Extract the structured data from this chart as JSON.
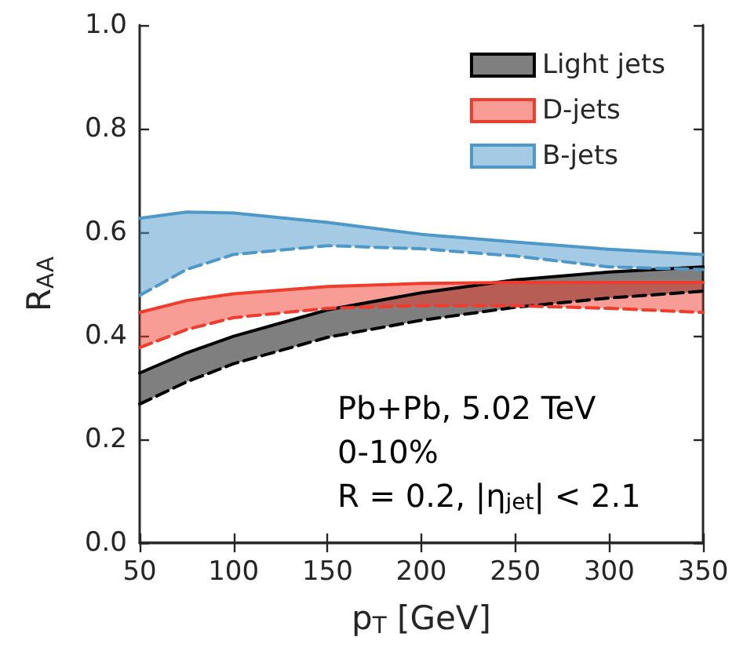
{
  "chart_data": {
    "type": "line",
    "xlabel": "p$_{T}$ [GeV]",
    "ylabel": "R$_{AA}$",
    "x": [
      50,
      75,
      100,
      150,
      200,
      250,
      300,
      350
    ],
    "series": [
      {
        "name": "Light jets",
        "color": "#000000",
        "values": [
          0.328,
          0.367,
          0.399,
          0.45,
          0.483,
          0.508,
          0.523,
          0.533
        ],
        "lower": [
          0.268,
          0.311,
          0.346,
          0.397,
          0.43,
          0.455,
          0.473,
          0.486
        ],
        "upper": [
          0.328,
          0.367,
          0.399,
          0.45,
          0.483,
          0.508,
          0.523,
          0.533
        ]
      },
      {
        "name": "D-jets",
        "color": "#f03c2c",
        "values": [
          0.445,
          0.468,
          0.481,
          0.495,
          0.501,
          0.503,
          0.503,
          0.503
        ],
        "lower": [
          0.377,
          0.412,
          0.435,
          0.453,
          0.458,
          0.458,
          0.453,
          0.445
        ],
        "upper": [
          0.445,
          0.468,
          0.481,
          0.495,
          0.501,
          0.503,
          0.503,
          0.503
        ]
      },
      {
        "name": "B-jets",
        "color": "#4c98c9",
        "values": [
          0.627,
          0.639,
          0.637,
          0.619,
          0.596,
          0.581,
          0.567,
          0.557
        ],
        "lower": [
          0.478,
          0.528,
          0.557,
          0.574,
          0.568,
          0.554,
          0.533,
          0.528
        ],
        "upper": [
          0.627,
          0.639,
          0.637,
          0.619,
          0.596,
          0.581,
          0.567,
          0.557
        ]
      },
      {
        "color": "#000000",
        "line_style": "dashed",
        "values": [
          0.268,
          0.311,
          0.346,
          0.397,
          0.43,
          0.455,
          0.473,
          0.486
        ]
      },
      {
        "color": "#f03c2c",
        "line_style": "dashed",
        "values": [
          0.377,
          0.412,
          0.435,
          0.453,
          0.458,
          0.458,
          0.453,
          0.445
        ]
      },
      {
        "color": "#4c98c9",
        "line_style": "dashed",
        "values": [
          0.478,
          0.528,
          0.557,
          0.574,
          0.568,
          0.554,
          0.533,
          0.528
        ]
      }
    ],
    "xlim": [
      50,
      350
    ],
    "xticks": [
      50,
      100,
      150,
      200,
      250,
      300,
      350
    ],
    "ylim": [
      0,
      1
    ],
    "yticks": [
      {
        "value": 0,
        "label": "0.0"
      },
      {
        "value": 0.2,
        "label": "0.2"
      },
      {
        "value": 0.4,
        "label": "0.4"
      },
      {
        "value": 0.6,
        "label": "0.6"
      },
      {
        "value": 0.8,
        "label": "0.8"
      },
      {
        "value": 1,
        "label": "1.0"
      }
    ],
    "legend": "top right",
    "grid": false,
    "annotations": [
      "Pb+Pb, 5.02 TeV",
      "0-10%",
      "R = 0.2, |η$_{jet}$| < 2.1"
    ]
  }
}
